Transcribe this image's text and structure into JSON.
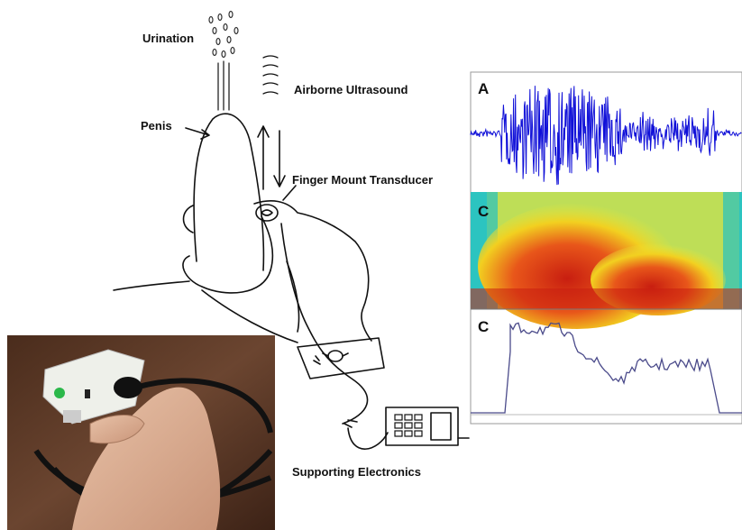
{
  "labels": {
    "urination": "Urination",
    "airborne": "Airborne Ultrasound",
    "penis": "Penis",
    "transducer": "Finger Mount Transducer",
    "electronics": "Supporting Electronics"
  },
  "panels": [
    {
      "label": "A"
    },
    {
      "label": "C"
    },
    {
      "label": "C"
    }
  ]
}
